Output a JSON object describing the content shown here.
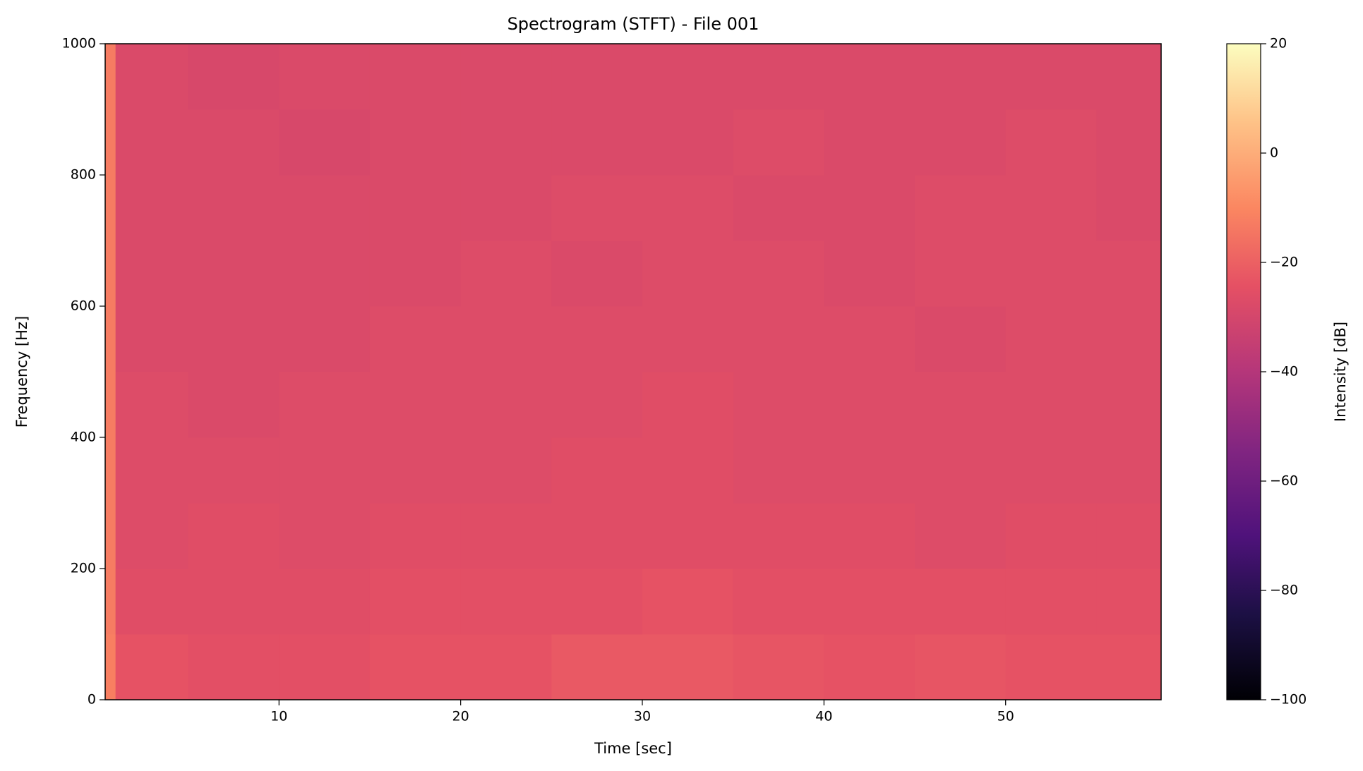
{
  "chart_data": {
    "type": "heatmap",
    "title": "Spectrogram (STFT) - File 001",
    "x_label": "Time [sec]",
    "y_label": "Frequency [Hz]",
    "colorbar_label": "Intensity [dB]",
    "colormap": "magma",
    "x_edges": [
      0.43,
      1.0,
      5,
      10,
      15,
      20,
      25,
      30,
      35,
      40,
      45,
      50,
      55,
      58.56
    ],
    "y_edges": [
      0,
      100,
      200,
      300,
      400,
      500,
      600,
      700,
      800,
      900,
      1000
    ],
    "values": [
      [
        -12,
        -24,
        -25,
        -25,
        -24,
        -24,
        -22,
        -22,
        -23,
        -24,
        -23,
        -24,
        -24
      ],
      [
        -13,
        -26,
        -26,
        -26,
        -25,
        -25,
        -25,
        -24,
        -25,
        -25,
        -25,
        -25,
        -25
      ],
      [
        -13,
        -27,
        -26,
        -27,
        -26,
        -26,
        -26,
        -26,
        -26,
        -26,
        -27,
        -26,
        -26
      ],
      [
        -13,
        -27,
        -27,
        -27,
        -27,
        -27,
        -26,
        -26,
        -27,
        -27,
        -27,
        -27,
        -27
      ],
      [
        -13,
        -27,
        -28,
        -27,
        -27,
        -27,
        -27,
        -26,
        -27,
        -27,
        -27,
        -27,
        -27
      ],
      [
        -13,
        -28,
        -28,
        -28,
        -27,
        -27,
        -27,
        -27,
        -27,
        -27,
        -28,
        -27,
        -27
      ],
      [
        -13,
        -28,
        -28,
        -28,
        -28,
        -27,
        -28,
        -27,
        -27,
        -28,
        -27,
        -27,
        -27
      ],
      [
        -13,
        -28,
        -28,
        -28,
        -28,
        -28,
        -27,
        -27,
        -28,
        -28,
        -27,
        -27,
        -28
      ],
      [
        -13,
        -28,
        -28,
        -29,
        -28,
        -28,
        -28,
        -28,
        -27,
        -28,
        -28,
        -27,
        -28
      ],
      [
        -13,
        -28,
        -29,
        -28,
        -28,
        -28,
        -28,
        -28,
        -28,
        -28,
        -28,
        -28,
        -28
      ]
    ],
    "xlim": [
      0.43,
      58.56
    ],
    "xticks": [
      10,
      20,
      30,
      40,
      50
    ],
    "ylim": [
      0,
      1000
    ],
    "yticks": [
      0,
      200,
      400,
      600,
      800,
      1000
    ],
    "clim": [
      -100,
      20
    ],
    "cticks": [
      {
        "value": -100,
        "label": "−100"
      },
      {
        "value": -80,
        "label": "−80"
      },
      {
        "value": -60,
        "label": "−60"
      },
      {
        "value": -40,
        "label": "−40"
      },
      {
        "value": -20,
        "label": "−20"
      },
      0,
      20
    ]
  }
}
